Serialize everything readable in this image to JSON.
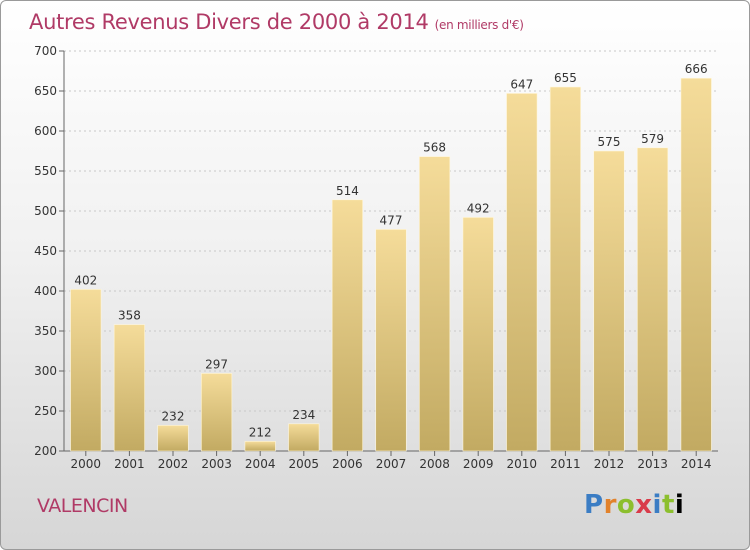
{
  "chart_data": {
    "type": "bar",
    "title": "Autres Revenus Divers de 2000 à 2014",
    "subtitle": "(en milliers d'€)",
    "categories": [
      "2000",
      "2001",
      "2002",
      "2003",
      "2004",
      "2005",
      "2006",
      "2007",
      "2008",
      "2009",
      "2010",
      "2011",
      "2012",
      "2013",
      "2014"
    ],
    "values": [
      402,
      358,
      232,
      297,
      212,
      234,
      514,
      477,
      568,
      492,
      647,
      655,
      575,
      579,
      666
    ],
    "ylim": [
      200,
      700
    ],
    "yticks": [
      200,
      250,
      300,
      350,
      400,
      450,
      500,
      550,
      600,
      650,
      700
    ],
    "grid": true,
    "colors": {
      "bar_top": "#f5dc9a",
      "bar_bottom": "#c2aa62",
      "title": "#b03a66"
    }
  },
  "footer": {
    "place": "VALENCIN",
    "logo_letters": [
      "P",
      "r",
      "o",
      "x",
      "i",
      "t",
      "i"
    ]
  }
}
